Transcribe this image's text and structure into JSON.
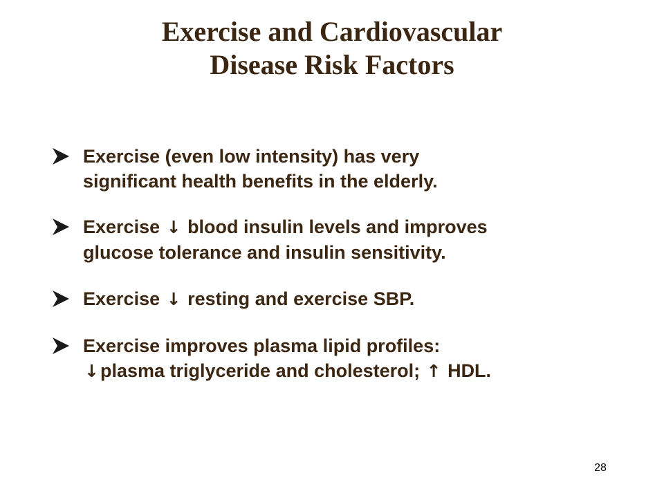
{
  "slide": {
    "title_line1": "Exercise and Cardiovascular",
    "title_line2": "Disease Risk Factors",
    "page_number": "28"
  },
  "bullets": [
    {
      "line1": "Exercise (even low intensity) has very",
      "line2": "significant health benefits in the elderly."
    },
    {
      "line1_pre": "Exercise ",
      "line1_symbol": "↓",
      "line1_post": " blood insulin levels and improves",
      "line2": "glucose tolerance and insulin sensitivity."
    },
    {
      "line1_pre": "Exercise ",
      "line1_symbol": "↓",
      "line1_post": " resting and exercise SBP."
    },
    {
      "line1": "Exercise improves plasma lipid profiles:",
      "line2_symbol": "↓",
      "line2_mid": "plasma triglyceride and cholesterol; ",
      "line2_symbol2": "↑",
      "line2_post": " HDL."
    }
  ],
  "colors": {
    "text": "#3b2612",
    "bullet_marker": "#1a1a1a",
    "background": "#ffffff"
  },
  "icons": {
    "bullet_marker": "arrowhead-bullet-icon",
    "down_arrow": "down-arrow-symbol",
    "up_arrow": "up-arrow-symbol"
  }
}
